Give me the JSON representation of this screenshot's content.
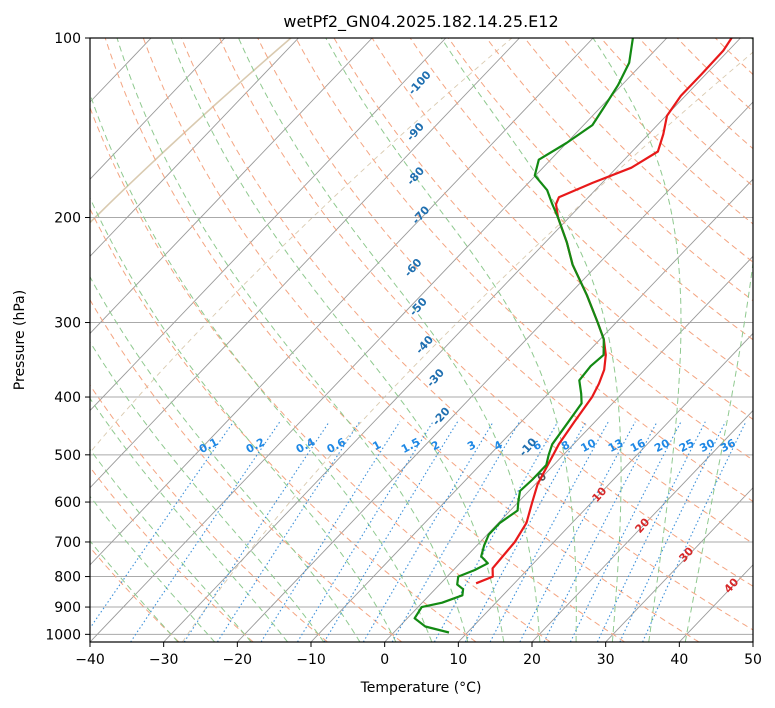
{
  "chart_data": {
    "type": "line",
    "title": "wetPf2_GN04.2025.182.14.25.E12",
    "xlabel": "Temperature (°C)",
    "ylabel": "Pressure (hPa)",
    "xlim": [
      -40,
      50
    ],
    "ylim": [
      1030,
      100
    ],
    "y_scale": "log",
    "x_ticks": [
      -40,
      -30,
      -20,
      -10,
      0,
      10,
      20,
      30,
      40,
      50
    ],
    "y_ticks": [
      100,
      200,
      300,
      400,
      500,
      600,
      700,
      800,
      900,
      1000
    ],
    "grid": true,
    "diagram": "skew-T log-P",
    "series": [
      {
        "name": "temperature",
        "color": "#e8191a",
        "points": [
          [
            821,
            4.8
          ],
          [
            800,
            6.2
          ],
          [
            775,
            5.1
          ],
          [
            700,
            4.7
          ],
          [
            650,
            3.8
          ],
          [
            600,
            1.9
          ],
          [
            560,
            0.3
          ],
          [
            520,
            -0.8
          ],
          [
            480,
            -2.0
          ],
          [
            440,
            -2.8
          ],
          [
            400,
            -3.6
          ],
          [
            380,
            -4.4
          ],
          [
            360,
            -5.5
          ],
          [
            340,
            -7.2
          ],
          [
            320,
            -9.5
          ],
          [
            300,
            -12.5
          ],
          [
            270,
            -17.5
          ],
          [
            240,
            -23.4
          ],
          [
            220,
            -27.1
          ],
          [
            200,
            -31.5
          ],
          [
            190,
            -33.5
          ],
          [
            185,
            -34.0
          ],
          [
            175,
            -31.3
          ],
          [
            165,
            -28.0
          ],
          [
            155,
            -26.5
          ],
          [
            145,
            -28.0
          ],
          [
            135,
            -29.9
          ],
          [
            125,
            -30.6
          ],
          [
            115,
            -30.6
          ],
          [
            105,
            -30.7
          ],
          [
            100,
            -31.2
          ]
        ]
      },
      {
        "name": "dewpoint",
        "color": "#138a13",
        "points": [
          [
            993,
            7.5
          ],
          [
            970,
            3.5
          ],
          [
            940,
            1.0
          ],
          [
            900,
            0.5
          ],
          [
            885,
            2.7
          ],
          [
            860,
            4.5
          ],
          [
            840,
            3.8
          ],
          [
            825,
            2.4
          ],
          [
            800,
            1.5
          ],
          [
            780,
            2.9
          ],
          [
            760,
            3.8
          ],
          [
            740,
            2.0
          ],
          [
            710,
            1.0
          ],
          [
            680,
            0.2
          ],
          [
            650,
            0.2
          ],
          [
            620,
            1.0
          ],
          [
            600,
            0.0
          ],
          [
            575,
            -1.2
          ],
          [
            550,
            -1.0
          ],
          [
            520,
            -1.0
          ],
          [
            500,
            -2.0
          ],
          [
            480,
            -2.9
          ],
          [
            440,
            -3.6
          ],
          [
            410,
            -4.2
          ],
          [
            395,
            -5.5
          ],
          [
            375,
            -7.5
          ],
          [
            355,
            -7.8
          ],
          [
            340,
            -7.5
          ],
          [
            320,
            -9.5
          ],
          [
            300,
            -12.5
          ],
          [
            270,
            -17.5
          ],
          [
            240,
            -23.4
          ],
          [
            220,
            -27.1
          ],
          [
            200,
            -31.5
          ],
          [
            190,
            -34.0
          ],
          [
            180,
            -36.5
          ],
          [
            170,
            -40.1
          ],
          [
            160,
            -41.6
          ],
          [
            150,
            -40.0
          ],
          [
            140,
            -38.8
          ],
          [
            130,
            -39.6
          ],
          [
            120,
            -40.5
          ],
          [
            110,
            -41.9
          ],
          [
            100,
            -44.6
          ]
        ]
      }
    ],
    "mixing_ratio_labels": [
      "0.1",
      "0.2",
      "0.4",
      "0.6",
      "1",
      "1.5",
      "2",
      "3",
      "4",
      "6",
      "8",
      "10",
      "13",
      "16",
      "20",
      "25",
      "30",
      "36"
    ],
    "wet_bulb_labels": [
      "-100",
      "-90",
      "-80",
      "-70",
      "-60",
      "-50",
      "-40",
      "-30",
      "-20",
      "-10",
      "0"
    ],
    "theta_e_labels": [
      "10",
      "20",
      "30",
      "40"
    ]
  },
  "colors": {
    "grid": "#aaaaaa",
    "isotherm": "#9a9a9a",
    "dry_adiabat": "#f4a582",
    "moist_adiabat": "#8fc98f",
    "mixing_ratio": "#3b8fd9",
    "wet_bulb_label": "#1f6fb0",
    "theta_e_label": "#d62728",
    "tan_curves": "#c9b48f"
  }
}
